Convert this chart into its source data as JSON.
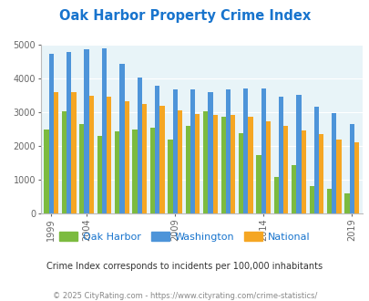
{
  "title": "Oak Harbor Property Crime Index",
  "title_color": "#1874CD",
  "subtitle": "Crime Index corresponds to incidents per 100,000 inhabitants",
  "footer": "© 2025 CityRating.com - https://www.cityrating.com/crime-statistics/",
  "years": [
    1999,
    2000,
    2001,
    2002,
    2003,
    2004,
    2005,
    2006,
    2007,
    2008,
    2009,
    2010,
    2011,
    2012,
    2013,
    2014,
    2015,
    2016,
    2017,
    2018,
    2019,
    2020,
    2021
  ],
  "oak_harbor": [
    2500,
    null,
    null,
    null,
    3050,
    2650,
    2300,
    2450,
    2500,
    2550,
    2200,
    2600,
    3050,
    2870,
    2380,
    1730,
    1100,
    1450,
    820,
    730,
    600,
    null,
    null
  ],
  "washington": [
    4750,
    null,
    null,
    null,
    4800,
    4870,
    4900,
    4450,
    4050,
    3790,
    3680,
    3700,
    3600,
    3680,
    3710,
    3710,
    3480,
    3520,
    3180,
    2980,
    2650,
    null,
    null
  ],
  "national": [
    3600,
    null,
    null,
    null,
    3600,
    3510,
    3460,
    3340,
    3250,
    3200,
    3060,
    2960,
    2920,
    2930,
    2880,
    2730,
    2610,
    2480,
    2360,
    2200,
    2130,
    null,
    null
  ],
  "bar_width": 0.27,
  "oak_harbor_color": "#7CBB3F",
  "washington_color": "#4D94D9",
  "national_color": "#F5A623",
  "plot_bg": "#E8F4F8",
  "ylim": [
    0,
    5000
  ],
  "yticks": [
    0,
    1000,
    2000,
    3000,
    4000,
    5000
  ],
  "tick_label_years": [
    1999,
    2004,
    2009,
    2014,
    2019
  ],
  "legend_labels": [
    "Oak Harbor",
    "Washington",
    "National"
  ]
}
